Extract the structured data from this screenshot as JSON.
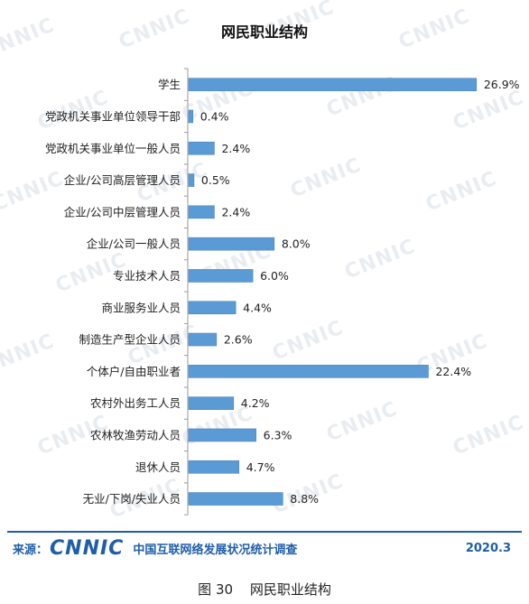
{
  "chart_data": {
    "type": "bar",
    "orientation": "horizontal",
    "title": "网民职业结构",
    "categories": [
      "学生",
      "党政机关事业单位领导干部",
      "党政机关事业单位一般人员",
      "企业/公司高层管理人员",
      "企业/公司中层管理人员",
      "企业/公司一般人员",
      "专业技术人员",
      "商业服务业人员",
      "制造生产型企业人员",
      "个体户/自由职业者",
      "农村外出务工人员",
      "农林牧渔劳动人员",
      "退休人员",
      "无业/下岗/失业人员"
    ],
    "values": [
      26.9,
      0.4,
      2.4,
      0.5,
      2.4,
      8.0,
      6.0,
      4.4,
      2.6,
      22.4,
      4.2,
      6.3,
      4.7,
      8.8
    ],
    "value_labels": [
      "26.9%",
      "0.4%",
      "2.4%",
      "0.5%",
      "2.4%",
      "8.0%",
      "6.0%",
      "4.4%",
      "2.6%",
      "22.4%",
      "4.2%",
      "6.3%",
      "4.7%",
      "8.8%"
    ],
    "xlim": [
      0,
      27
    ],
    "grid": false,
    "bar_color": "#5b9bd5"
  },
  "watermark": "CNNIC",
  "footer": {
    "source_label": "来源：",
    "logo": "CNNIC",
    "report_name": "中国互联网络发展状况统计调查",
    "date": "2020.3"
  },
  "caption": {
    "number": "图 30",
    "text": "网民职业结构"
  },
  "colors": {
    "accent": "#1f5ea8",
    "bar": "#5b9bd5",
    "axis": "#9a9a9a"
  }
}
